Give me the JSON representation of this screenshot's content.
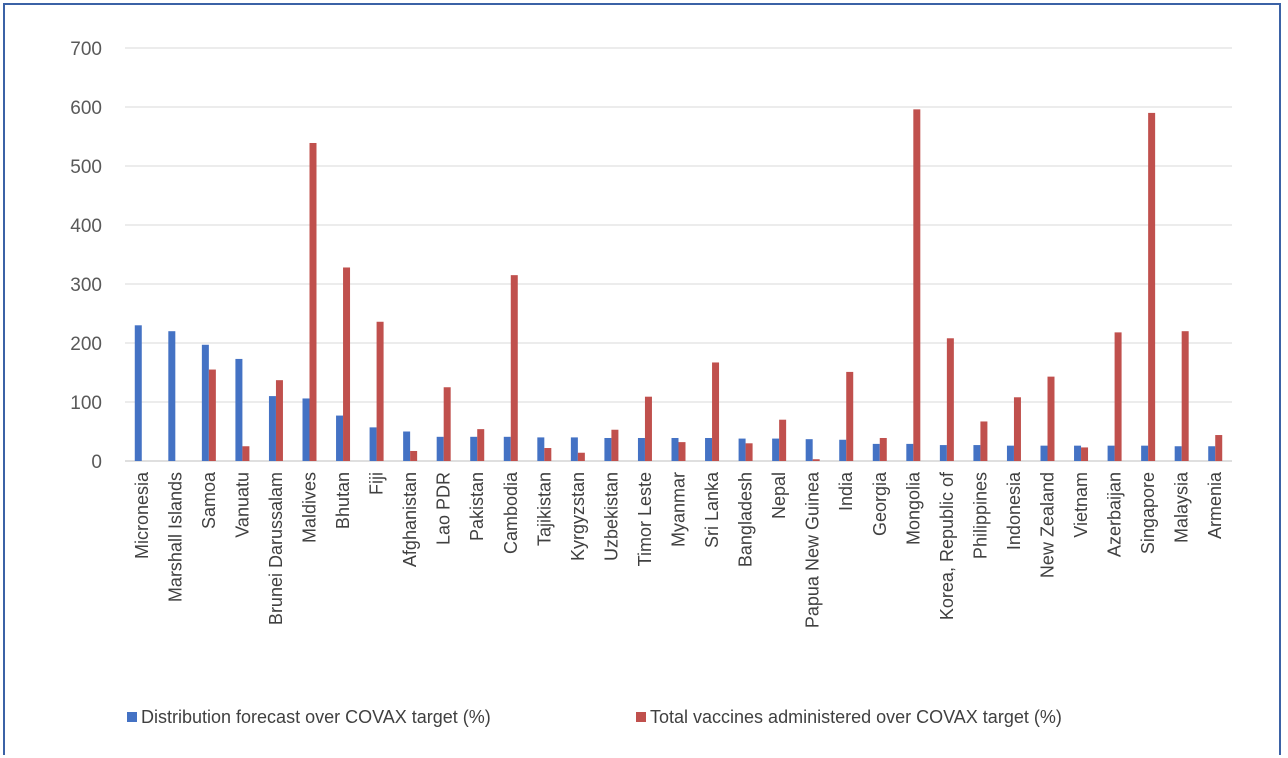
{
  "chart_data": {
    "type": "bar",
    "title": "",
    "xlabel": "",
    "ylabel": "",
    "ylim": [
      0,
      700
    ],
    "yticks": [
      0,
      100,
      200,
      300,
      400,
      500,
      600,
      700
    ],
    "grid": true,
    "legend_position": "bottom",
    "categories": [
      "Micronesia",
      "Marshall Islands",
      "Samoa",
      "Vanuatu",
      "Brunei Darussalam",
      "Maldives",
      "Bhutan",
      "Fiji",
      "Afghanistan",
      "Lao PDR",
      "Pakistan",
      "Cambodia",
      "Tajikistan",
      "Kyrgyzstan",
      "Uzbekistan",
      "Timor Leste",
      "Myanmar",
      "Sri Lanka",
      "Bangladesh",
      "Nepal",
      "Papua New Guinea",
      "India",
      "Georgia",
      "Mongolia",
      "Korea, Republic of",
      "Philippines",
      "Indonesia",
      "New Zealand",
      "Vietnam",
      "Azerbaijan",
      "Singapore",
      "Malaysia",
      "Armenia"
    ],
    "series": [
      {
        "name": "Distribution forecast over COVAX target (%)",
        "color": "#4472c4",
        "values": [
          230,
          220,
          197,
          173,
          110,
          106,
          77,
          57,
          50,
          41,
          41,
          41,
          40,
          40,
          39,
          39,
          39,
          39,
          38,
          38,
          37,
          36,
          29,
          29,
          27,
          27,
          26,
          26,
          26,
          26,
          26,
          25,
          25
        ]
      },
      {
        "name": "Total vaccines administered over COVAX target (%)",
        "color": "#c0504d",
        "values": [
          0,
          0,
          155,
          25,
          137,
          539,
          328,
          236,
          17,
          125,
          54,
          315,
          22,
          14,
          53,
          109,
          32,
          167,
          30,
          70,
          3,
          151,
          39,
          596,
          208,
          67,
          108,
          143,
          23,
          218,
          590,
          220,
          44
        ]
      }
    ]
  }
}
